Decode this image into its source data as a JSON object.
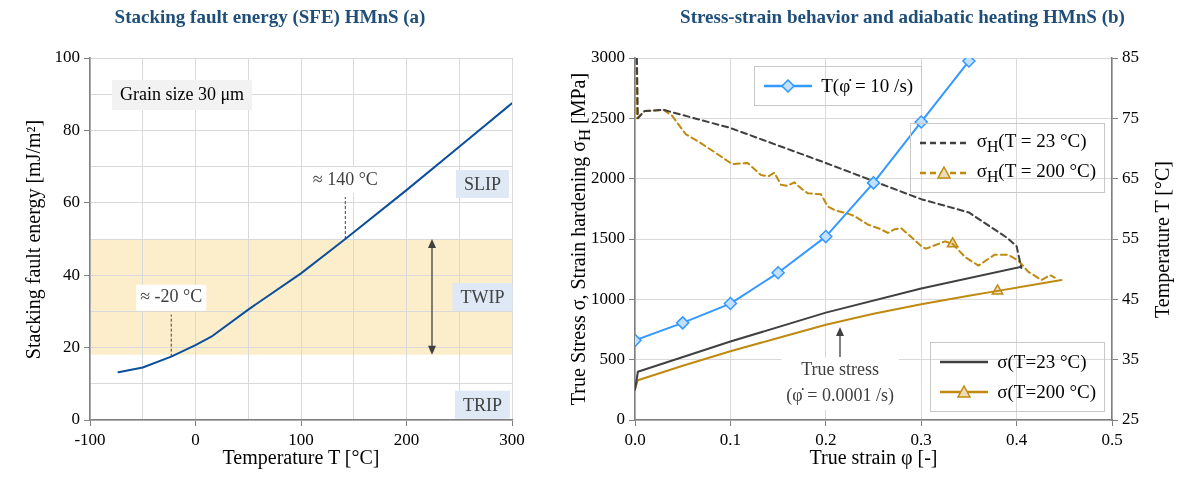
{
  "chart_data": [
    {
      "type": "line",
      "title": "Stacking fault energy (SFE) HMnS (a)",
      "xlabel": "Temperature T [°C]",
      "ylabel": "Stacking fault energy [mJ/m²]",
      "series": [
        {
          "color": "#0b4f9c",
          "x": [
            -73,
            -50,
            -23,
            0,
            15,
            50,
            100,
            142,
            200,
            250,
            300
          ],
          "values": [
            13.2,
            14.5,
            17.5,
            20.7,
            23,
            30.5,
            40.5,
            50,
            63.5,
            75.5,
            87.5
          ]
        }
      ],
      "xlim": [
        -100,
        300
      ],
      "xticks": [
        -100,
        {
          "value": -50,
          "label": null
        },
        0,
        {
          "value": 50,
          "label": null
        },
        100,
        {
          "value": 150,
          "label": null
        },
        200,
        {
          "value": 250,
          "label": null
        },
        300
      ],
      "ylim": [
        0,
        100
      ],
      "yticks": [
        0,
        {
          "value": 10,
          "label": null
        },
        20,
        {
          "value": 30,
          "label": null
        },
        40,
        {
          "value": 50,
          "label": null
        },
        60,
        {
          "value": 70,
          "label": null
        },
        80,
        {
          "value": 90,
          "label": null
        },
        100
      ],
      "grid": true,
      "bands": [
        {
          "axis": "y",
          "from": 18,
          "to": 50,
          "color": "#fdeecb",
          "label": "TWIP"
        }
      ],
      "annotations": [
        "Grain size 30 μm",
        {
          "text": "≈ 140 °C",
          "x": 142,
          "y": 50
        },
        {
          "text": "≈ -20 °C",
          "x": -23,
          "y": 17.5
        },
        "SLIP",
        "TRIP"
      ]
    },
    {
      "type": "line",
      "title": "Stress-strain behavior and adiabatic heating HMnS (b)",
      "xlabel": "True strain φ [-]",
      "ylabel": "True Stress σ, Strain hardening σ$_{H}$ [MPa]",
      "y2label": "Temperature T [°C]",
      "series": [
        {
          "name": "T(φ̇ = 10 /s)",
          "axis": "y2",
          "color": "#3399ff",
          "marker": "diamond",
          "x": [
            0,
            0.05,
            0.1,
            0.15,
            0.2,
            0.25,
            0.3,
            0.35
          ],
          "values": [
            38.2,
            41.1,
            44.3,
            49.4,
            55.4,
            64.3,
            74.4,
            84.5
          ]
        },
        {
          "name": "σ$_{H}$(T = 23 °C)",
          "color": "#404040",
          "line_style": "dashed",
          "x": [
            0.002,
            0.003,
            0.01,
            0.03,
            0.1,
            0.2,
            0.3,
            0.35,
            0.39,
            0.4,
            0.405
          ],
          "values": [
            3000,
            2500,
            2560,
            2570,
            2420,
            2130,
            1830,
            1720,
            1510,
            1440,
            1260
          ]
        },
        {
          "name": "σ$_{H}$(T = 200 °C)",
          "color": "#c08a10",
          "line_style": "dashed",
          "x": [
            0.001,
            0.002,
            0.01,
            0.03,
            0.039,
            0.053,
            0.068,
            0.089,
            0.102,
            0.118,
            0.132,
            0.14,
            0.146,
            0.153,
            0.16,
            0.167,
            0.174,
            0.181,
            0.195,
            0.202,
            0.209,
            0.223,
            0.23,
            0.244,
            0.258,
            0.265,
            0.272,
            0.279,
            0.289,
            0.3,
            0.305,
            0.325,
            0.333,
            0.346,
            0.36,
            0.377,
            0.391,
            0.402,
            0.412,
            0.426,
            0.435,
            0.44
          ],
          "values": [
            3000,
            2500,
            2560,
            2570,
            2520,
            2370,
            2300,
            2190,
            2120,
            2130,
            2030,
            2020,
            2050,
            1950,
            1940,
            1970,
            1920,
            1880,
            1870,
            1770,
            1740,
            1710,
            1690,
            1620,
            1580,
            1550,
            1580,
            1590,
            1520,
            1440,
            1420,
            1480,
            1460,
            1350,
            1280,
            1370,
            1370,
            1320,
            1230,
            1160,
            1200,
            1180
          ]
        },
        {
          "name": "σ(T=23 °C)",
          "color": "#404040",
          "x": [
            0,
            0.003,
            0.1,
            0.2,
            0.3,
            0.405
          ],
          "values": [
            250,
            400,
            650,
            890,
            1090,
            1270
          ]
        },
        {
          "name": "σ(T=200 °C)",
          "color": "#c08a10",
          "x": [
            0,
            0.003,
            0.05,
            0.1,
            0.15,
            0.2,
            0.25,
            0.3,
            0.35,
            0.38,
            0.447
          ],
          "values": [
            260,
            330,
            450,
            570,
            680,
            790,
            880,
            960,
            1030,
            1070,
            1160
          ]
        },
        {
          "type": "scatter",
          "color": "#c08a10",
          "marker": "triangle",
          "x": [
            0.333,
            0.38
          ],
          "values": [
            1460,
            1070
          ]
        }
      ],
      "xlim": [
        0,
        0.5
      ],
      "xticks": [
        {
          "value": 0,
          "label": "0.0"
        },
        0.1,
        0.2,
        0.3,
        0.4,
        0.5
      ],
      "ylim": [
        0,
        3000
      ],
      "yticks": [
        0,
        500,
        1000,
        1500,
        2000,
        2500,
        3000
      ],
      "y2lim": [
        25,
        85
      ],
      "y2ticks": [
        25,
        35,
        45,
        55,
        65,
        75,
        85
      ],
      "grid": true,
      "legend": "right",
      "annotations": [
        {
          "text": "True stress\n(φ̇ = 0.0001 /s)",
          "x": 0.215,
          "y": 800
        }
      ]
    }
  ]
}
